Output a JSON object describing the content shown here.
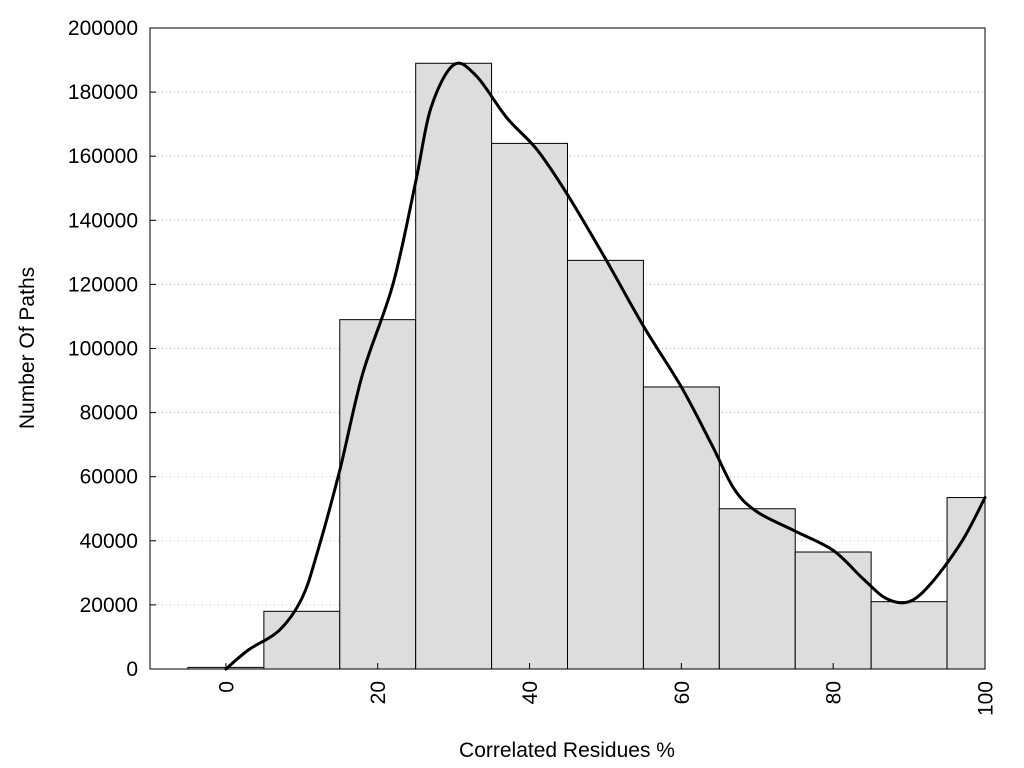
{
  "chart_data": {
    "type": "bar",
    "subtype": "histogram",
    "xlabel": "Correlated Residues %",
    "ylabel": "Number Of Paths",
    "xlim": [
      -10,
      100
    ],
    "ylim": [
      0,
      200000
    ],
    "x_ticks": [
      0,
      20,
      40,
      60,
      80,
      100
    ],
    "y_ticks": [
      0,
      20000,
      40000,
      60000,
      80000,
      100000,
      120000,
      140000,
      160000,
      180000,
      200000
    ],
    "grid": "horizontal-dotted",
    "bin_width": 10,
    "bins": [
      {
        "center": 0,
        "count": 500
      },
      {
        "center": 10,
        "count": 18000
      },
      {
        "center": 20,
        "count": 109000
      },
      {
        "center": 30,
        "count": 189000
      },
      {
        "center": 40,
        "count": 164000
      },
      {
        "center": 50,
        "count": 127500
      },
      {
        "center": 60,
        "count": 88000
      },
      {
        "center": 70,
        "count": 50000
      },
      {
        "center": 80,
        "count": 36500
      },
      {
        "center": 90,
        "count": 21000
      },
      {
        "center": 100,
        "count": 53500
      }
    ],
    "density_curve": [
      {
        "x": 0,
        "y": 0
      },
      {
        "x": 3,
        "y": 6000
      },
      {
        "x": 7,
        "y": 12000
      },
      {
        "x": 10,
        "y": 22000
      },
      {
        "x": 12,
        "y": 36000
      },
      {
        "x": 15,
        "y": 62000
      },
      {
        "x": 18,
        "y": 92000
      },
      {
        "x": 22,
        "y": 120000
      },
      {
        "x": 25,
        "y": 152000
      },
      {
        "x": 27,
        "y": 175000
      },
      {
        "x": 30,
        "y": 188500
      },
      {
        "x": 33,
        "y": 185000
      },
      {
        "x": 37,
        "y": 172000
      },
      {
        "x": 41,
        "y": 162000
      },
      {
        "x": 45,
        "y": 148000
      },
      {
        "x": 50,
        "y": 128000
      },
      {
        "x": 55,
        "y": 107000
      },
      {
        "x": 60,
        "y": 88000
      },
      {
        "x": 64,
        "y": 70000
      },
      {
        "x": 67,
        "y": 56000
      },
      {
        "x": 70,
        "y": 49000
      },
      {
        "x": 75,
        "y": 43000
      },
      {
        "x": 80,
        "y": 37000
      },
      {
        "x": 84,
        "y": 28000
      },
      {
        "x": 87,
        "y": 22000
      },
      {
        "x": 90,
        "y": 21000
      },
      {
        "x": 93,
        "y": 27000
      },
      {
        "x": 97,
        "y": 40000
      },
      {
        "x": 100,
        "y": 53500
      }
    ]
  }
}
